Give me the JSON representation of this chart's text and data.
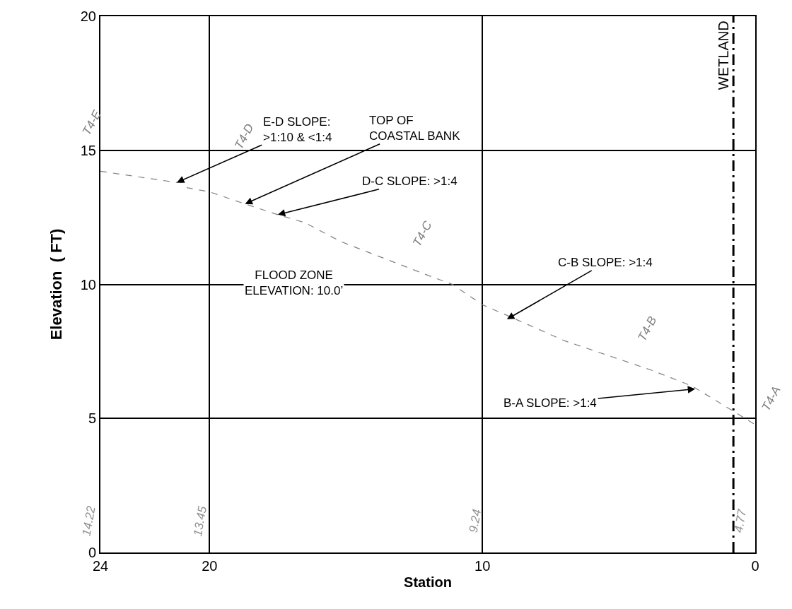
{
  "chart_data": {
    "type": "line",
    "xlabel": "Station",
    "ylabel": "Elevation  ( FT)",
    "x": [
      24,
      21.2,
      21.0,
      20.8,
      20,
      18.7,
      17.5,
      16.5,
      15.2,
      11.9,
      11.1,
      10,
      9,
      7,
      3.8,
      2.3,
      0
    ],
    "series": [
      {
        "color": "#808080",
        "line_style": "dashed",
        "values": [
          14.22,
          13.8,
          13.8,
          13.6,
          13.45,
          13.0,
          12.6,
          12.3,
          11.6,
          10.3,
          10.0,
          9.24,
          8.8,
          7.9,
          6.8,
          6.2,
          4.77
        ]
      }
    ],
    "xlim": [
      24,
      0
    ],
    "xticks": [
      24,
      20,
      10,
      0
    ],
    "ylim": [
      0,
      20
    ],
    "yticks": [
      0,
      5,
      10,
      15,
      20
    ],
    "grid": true,
    "marker": "none",
    "ref_lines": [
      {
        "axis": "x",
        "value": 0.8,
        "label": "WETLAND",
        "color": "#000000",
        "line_style": "dashed"
      }
    ],
    "annotations": [
      {
        "text": "E-D SLOPE:\n>1:10 & <1:4",
        "x": 21.2,
        "y": 13.8
      },
      {
        "text": "TOP OF\nCOASTAL BANK",
        "x": 18.7,
        "y": 13.0
      },
      {
        "text": "D-C SLOPE: >1:4",
        "x": 17.5,
        "y": 12.6
      },
      {
        "text": "C-B SLOPE: >1:4",
        "x": 9.1,
        "y": 8.7
      },
      {
        "text": "B-A SLOPE: >1:4",
        "x": 2.2,
        "y": 6.1
      },
      "FLOOD ZONE\nELEVATION: 10.0’",
      "T4-E",
      "T4-D",
      "T4-C",
      "T4-B",
      "T4-A",
      "14.22",
      "13.45",
      "9.24",
      "4.77"
    ]
  }
}
